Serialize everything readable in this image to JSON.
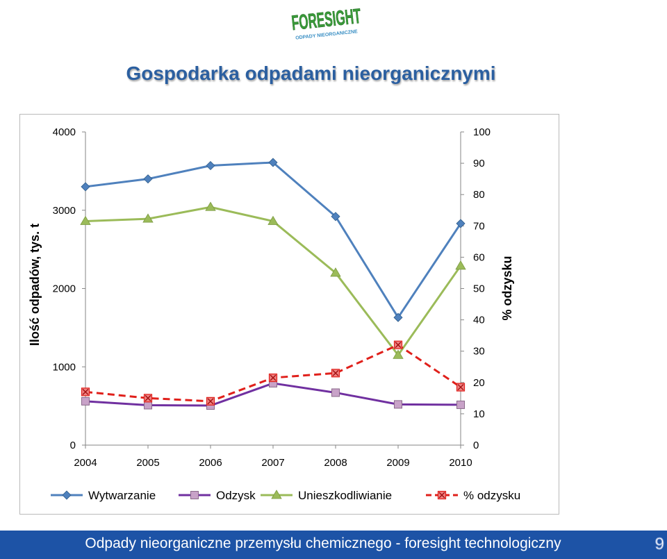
{
  "logo": {
    "text": "FORESIGHT",
    "subtext": "ODPADY NIEORGANICZNE"
  },
  "slide": {
    "title": "Gospodarka odpadami nieorganicznymi",
    "footer": "Odpady nieorganiczne przemysłu chemicznego - foresight technologiczny",
    "page_number": "9"
  },
  "colors": {
    "wytwarzanie": "#4f81bd",
    "odzysk": "#7030a0",
    "unieszkodliwianie": "#9bbb59",
    "odzysku_pct": "#e0201b",
    "title": "#2b5fa0",
    "footer_bg": "#1d53a6"
  },
  "chart_data": {
    "type": "line",
    "categories": [
      "2004",
      "2005",
      "2006",
      "2007",
      "2008",
      "2009",
      "2010"
    ],
    "ylabel": "Ilość odpadów, tys. t",
    "y2label": "% odzysku",
    "ylim": [
      0,
      4000
    ],
    "y2lim": [
      0,
      100
    ],
    "yticks": [
      "0",
      "1000",
      "2000",
      "3000",
      "4000"
    ],
    "y2ticks": [
      "0",
      "10",
      "20",
      "30",
      "40",
      "50",
      "60",
      "70",
      "80",
      "90",
      "100"
    ],
    "grid": false,
    "legend_position": "bottom",
    "series": [
      {
        "name": "Wytwarzanie",
        "axis": "left",
        "marker": "diamond",
        "dash": "solid",
        "color": "#4f81bd",
        "values": [
          3300,
          3400,
          3570,
          3610,
          2920,
          1630,
          2830
        ]
      },
      {
        "name": "Odzysk",
        "axis": "left",
        "marker": "square",
        "dash": "solid",
        "color": "#7030a0",
        "values": [
          560,
          510,
          505,
          790,
          670,
          520,
          515
        ]
      },
      {
        "name": "Unieszkodliwianie",
        "axis": "left",
        "marker": "triangle",
        "dash": "solid",
        "color": "#9bbb59",
        "values": [
          2860,
          2890,
          3040,
          2860,
          2200,
          1150,
          2290
        ]
      },
      {
        "name": "% odzysku",
        "axis": "right",
        "marker": "x-square",
        "dash": "dashed",
        "color": "#e0201b",
        "values": [
          17,
          15,
          14,
          21.5,
          23,
          32,
          18.5
        ]
      }
    ]
  }
}
